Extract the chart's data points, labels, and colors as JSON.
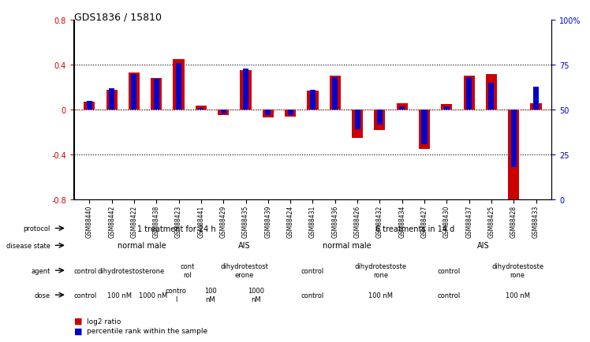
{
  "title": "GDS1836 / 15810",
  "samples": [
    "GSM88440",
    "GSM88442",
    "GSM88422",
    "GSM88438",
    "GSM88423",
    "GSM88441",
    "GSM88429",
    "GSM88435",
    "GSM88439",
    "GSM88424",
    "GSM88431",
    "GSM88436",
    "GSM88426",
    "GSM88432",
    "GSM88434",
    "GSM88427",
    "GSM88430",
    "GSM88437",
    "GSM88425",
    "GSM88428",
    "GSM88433"
  ],
  "log2_ratio": [
    0.07,
    0.18,
    0.33,
    0.28,
    0.45,
    0.04,
    -0.05,
    0.35,
    -0.07,
    -0.06,
    0.17,
    0.3,
    -0.25,
    -0.18,
    0.06,
    -0.35,
    0.05,
    0.3,
    0.32,
    -0.82,
    0.06
  ],
  "percentile": [
    55,
    62,
    70,
    67,
    76,
    51,
    48,
    73,
    47,
    47,
    61,
    68,
    39,
    42,
    52,
    31,
    52,
    68,
    65,
    18,
    63
  ],
  "red_color": "#cc0000",
  "blue_color": "#0000cc",
  "protocol_groups": [
    {
      "label": "1 treatment for 24 h",
      "start": 0,
      "end": 8,
      "color": "#99ee99"
    },
    {
      "label": "6 treatments in 14 d",
      "start": 9,
      "end": 20,
      "color": "#44cc44"
    }
  ],
  "disease_groups": [
    {
      "label": "normal male",
      "start": 0,
      "end": 5,
      "color": "#aabbee"
    },
    {
      "label": "AIS",
      "start": 6,
      "end": 8,
      "color": "#6699cc"
    },
    {
      "label": "normal male",
      "start": 9,
      "end": 14,
      "color": "#aabbee"
    },
    {
      "label": "AIS",
      "start": 15,
      "end": 20,
      "color": "#6699cc"
    }
  ],
  "agent_groups": [
    {
      "label": "control",
      "start": 0,
      "end": 0,
      "color": "#ff99ee"
    },
    {
      "label": "dihydrotestosterone",
      "start": 1,
      "end": 3,
      "color": "#ff66cc"
    },
    {
      "label": "cont\nrol",
      "start": 4,
      "end": 5,
      "color": "#ff99ee"
    },
    {
      "label": "dihydrotestost\nerone",
      "start": 6,
      "end": 8,
      "color": "#ff66cc"
    },
    {
      "label": "control",
      "start": 9,
      "end": 11,
      "color": "#ff99ee"
    },
    {
      "label": "dihydrotestoste\nrone",
      "start": 12,
      "end": 14,
      "color": "#ff66cc"
    },
    {
      "label": "control",
      "start": 15,
      "end": 17,
      "color": "#ff99ee"
    },
    {
      "label": "dihydrotestoste\nrone",
      "start": 18,
      "end": 20,
      "color": "#ff66cc"
    }
  ],
  "dose_groups": [
    {
      "label": "control",
      "start": 0,
      "end": 0,
      "color": "#ddbb88"
    },
    {
      "label": "100 nM",
      "start": 1,
      "end": 2,
      "color": "#ddbb88"
    },
    {
      "label": "1000 nM",
      "start": 3,
      "end": 3,
      "color": "#cc9944"
    },
    {
      "label": "contro\nl",
      "start": 4,
      "end": 4,
      "color": "#ddbb88"
    },
    {
      "label": "100\nnM",
      "start": 5,
      "end": 6,
      "color": "#ddbb88"
    },
    {
      "label": "1000\nnM",
      "start": 7,
      "end": 8,
      "color": "#cc9944"
    },
    {
      "label": "control",
      "start": 9,
      "end": 11,
      "color": "#ddbb88"
    },
    {
      "label": "100 nM",
      "start": 12,
      "end": 14,
      "color": "#ddbb88"
    },
    {
      "label": "control",
      "start": 15,
      "end": 17,
      "color": "#ddbb88"
    },
    {
      "label": "100 nM",
      "start": 18,
      "end": 20,
      "color": "#ddbb88"
    }
  ],
  "row_labels": [
    "protocol",
    "disease state",
    "agent",
    "dose"
  ],
  "legend_items": [
    {
      "color": "#cc0000",
      "label": "log2 ratio"
    },
    {
      "color": "#0000cc",
      "label": "percentile rank within the sample"
    }
  ]
}
